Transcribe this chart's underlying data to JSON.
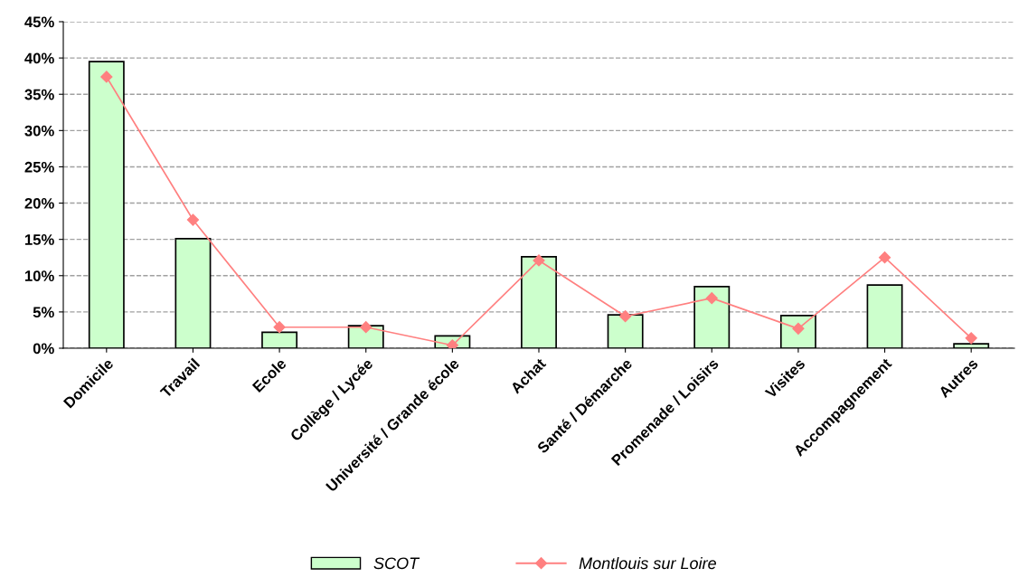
{
  "chart_data": {
    "type": "bar",
    "categories": [
      "Domicile",
      "Travail",
      "Ecole",
      "Collège / Lycée",
      "Université / Grande école",
      "Achat",
      "Santé / Démarche",
      "Promenade / Loisirs",
      "Visites",
      "Accompagnement",
      "Autres"
    ],
    "series": [
      {
        "name": "SCOT",
        "color": "#ccffcc",
        "values": [
          39.5,
          15.1,
          2.2,
          3.1,
          1.7,
          12.6,
          4.6,
          8.5,
          4.5,
          8.7,
          0.6
        ]
      },
      {
        "name": "Montlouis sur Loire",
        "type": "line",
        "color": "#ff8080",
        "marker": "diamond",
        "values": [
          37.4,
          17.7,
          2.9,
          2.9,
          0.4,
          12.1,
          4.4,
          6.9,
          2.7,
          12.5,
          1.4
        ]
      }
    ],
    "ylim": [
      0,
      45
    ],
    "yticks": [
      {
        "value": 0,
        "label": "0%"
      },
      {
        "value": 5,
        "label": "5%"
      },
      {
        "value": 10,
        "label": "10%"
      },
      {
        "value": 15,
        "label": "15%"
      },
      {
        "value": 20,
        "label": "20%"
      },
      {
        "value": 25,
        "label": "25%"
      },
      {
        "value": 30,
        "label": "30%"
      },
      {
        "value": 35,
        "label": "35%"
      },
      {
        "value": 40,
        "label": "40%"
      },
      {
        "value": 45,
        "label": "45%"
      }
    ],
    "grid": "y",
    "legend": "bottom"
  }
}
